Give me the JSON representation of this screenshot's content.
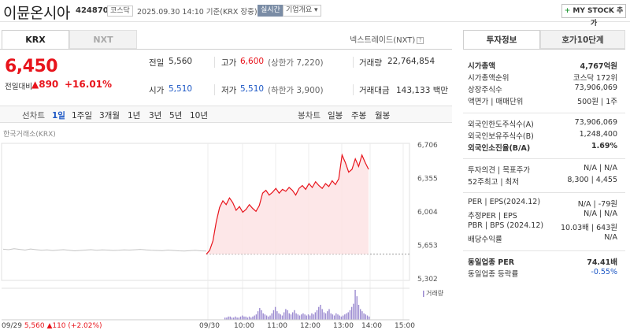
{
  "header": {
    "name": "이뮨온시아",
    "code": "424870",
    "market": "코스닥",
    "datetime": "2025.09.30 14:10 기준(KRX 장중)",
    "realtime": "실시간",
    "company_info": "기업개요",
    "mystock": "MY STOCK 추가"
  },
  "tabs": {
    "krx": "KRX",
    "nxt": "NXT",
    "nxt_link": "넥스트레이드(NXT)"
  },
  "price": {
    "current": "6,450",
    "change_label": "전일대비",
    "change": "890",
    "change_pct": "+16.01%"
  },
  "summary": {
    "prev_label": "전일",
    "prev": "5,560",
    "high_label": "고가",
    "high": "6,600",
    "upper_limit": "(상한가 7,220)",
    "volume_label": "거래량",
    "volume": "22,764,854",
    "open_label": "시가",
    "open": "5,510",
    "low_label": "저가",
    "low": "5,510",
    "lower_limit": "(하한가 3,900)",
    "amount_label": "거래대금",
    "amount": "143,133",
    "amount_unit": "백만"
  },
  "periods": {
    "label": "선차트",
    "items": [
      "1일",
      "1주일",
      "3개월",
      "1년",
      "3년",
      "5년",
      "10년"
    ],
    "candle_label": "봉차트",
    "candle_items": [
      "일봉",
      "주봉",
      "월봉"
    ]
  },
  "chart_data": {
    "type": "line",
    "source": "한국거래소(KRX)",
    "yticks": [
      6706,
      6355,
      6004,
      5653,
      5302
    ],
    "ylim": [
      5302,
      6706
    ],
    "prev_close": 5560,
    "xticks": [
      "09/29",
      "09/30",
      "10:00",
      "11:00",
      "12:00",
      "13:00",
      "14:00",
      "15:00"
    ],
    "prev_day_footer": {
      "date": "09/29",
      "close": "5,560",
      "change": "110",
      "pct": "(+2.02%)"
    },
    "volume_label": "거래량",
    "prev_session": [
      5580,
      5575,
      5585,
      5578,
      5570,
      5582,
      5575,
      5568,
      5572,
      5565,
      5570,
      5575,
      5568,
      5562,
      5566,
      5570,
      5575,
      5568,
      5572,
      5570,
      5566,
      5568,
      5572,
      5570,
      5574,
      5578,
      5572,
      5568,
      5566,
      5564,
      5570,
      5566,
      5562,
      5560,
      5564,
      5568,
      5562,
      5560
    ],
    "session": [
      5560,
      5600,
      5700,
      5900,
      6050,
      6120,
      6080,
      6150,
      6100,
      6020,
      6060,
      6000,
      6030,
      6080,
      6040,
      6010,
      6070,
      6200,
      6230,
      6180,
      6210,
      6250,
      6200,
      6240,
      6220,
      6260,
      6230,
      6180,
      6250,
      6280,
      6240,
      6300,
      6260,
      6320,
      6280,
      6250,
      6300,
      6270,
      6330,
      6290,
      6350,
      6600,
      6520,
      6420,
      6450,
      6560,
      6480,
      6600,
      6520,
      6450
    ],
    "volumes": [
      2,
      2,
      3,
      3,
      2,
      2,
      3,
      2,
      2,
      3,
      4,
      3,
      3,
      2,
      3,
      2,
      3,
      4,
      5,
      8,
      11,
      9,
      6,
      5,
      4,
      3,
      4,
      6,
      9,
      12,
      8,
      6,
      5,
      4,
      7,
      10,
      9,
      6,
      5,
      7,
      9,
      6,
      5,
      4,
      5,
      6,
      5,
      4,
      5,
      4,
      6,
      5,
      7,
      9,
      12,
      14,
      10,
      7,
      6,
      8,
      10,
      6,
      5,
      4,
      6,
      5,
      4,
      3,
      4,
      5,
      6,
      7,
      9,
      12,
      15,
      28,
      22,
      14,
      10,
      8,
      6,
      5,
      4,
      3
    ]
  },
  "right_panel": {
    "tab_invest": "투자정보",
    "tab_ask": "호가10단계",
    "rows": [
      {
        "k": "시가총액",
        "v": "4,767억원",
        "bold": true
      },
      {
        "k": "시가총액순위",
        "v": "코스닥 172위"
      },
      {
        "k": "상장주식수",
        "v": "73,906,069"
      },
      {
        "k": "액면가 | 매매단위",
        "v": "500원 | 1주"
      },
      {
        "k": "외국인한도주식수(A)",
        "v": "73,906,069"
      },
      {
        "k": "외국인보유주식수(B)",
        "v": "1,248,400"
      },
      {
        "k": "외국인소진율(B/A)",
        "v": "1.69%",
        "bold": true
      },
      {
        "k": "투자의견 | 목표주가",
        "v": "N/A | N/A"
      },
      {
        "k": "52주최고 | 최저",
        "v": "8,300 | 4,455"
      },
      {
        "k": "PER | EPS(2024.12)",
        "v": "N/A | -79원"
      },
      {
        "k": "추정PER | EPS",
        "v": "N/A | N/A"
      },
      {
        "k": "PBR | BPS (2024.12)",
        "v": "10.03배 | 643원"
      },
      {
        "k": "배당수익률",
        "v": "N/A"
      },
      {
        "k": "동일업종 PER",
        "v": "74.41배",
        "bold": true
      },
      {
        "k": "동일업종 등락률",
        "v": "-0.55%"
      }
    ]
  },
  "colors": {
    "up": "#e8141c",
    "down": "#1c57c5",
    "chart_fill": "#fde3e4",
    "volume": "#9b8ad0"
  }
}
